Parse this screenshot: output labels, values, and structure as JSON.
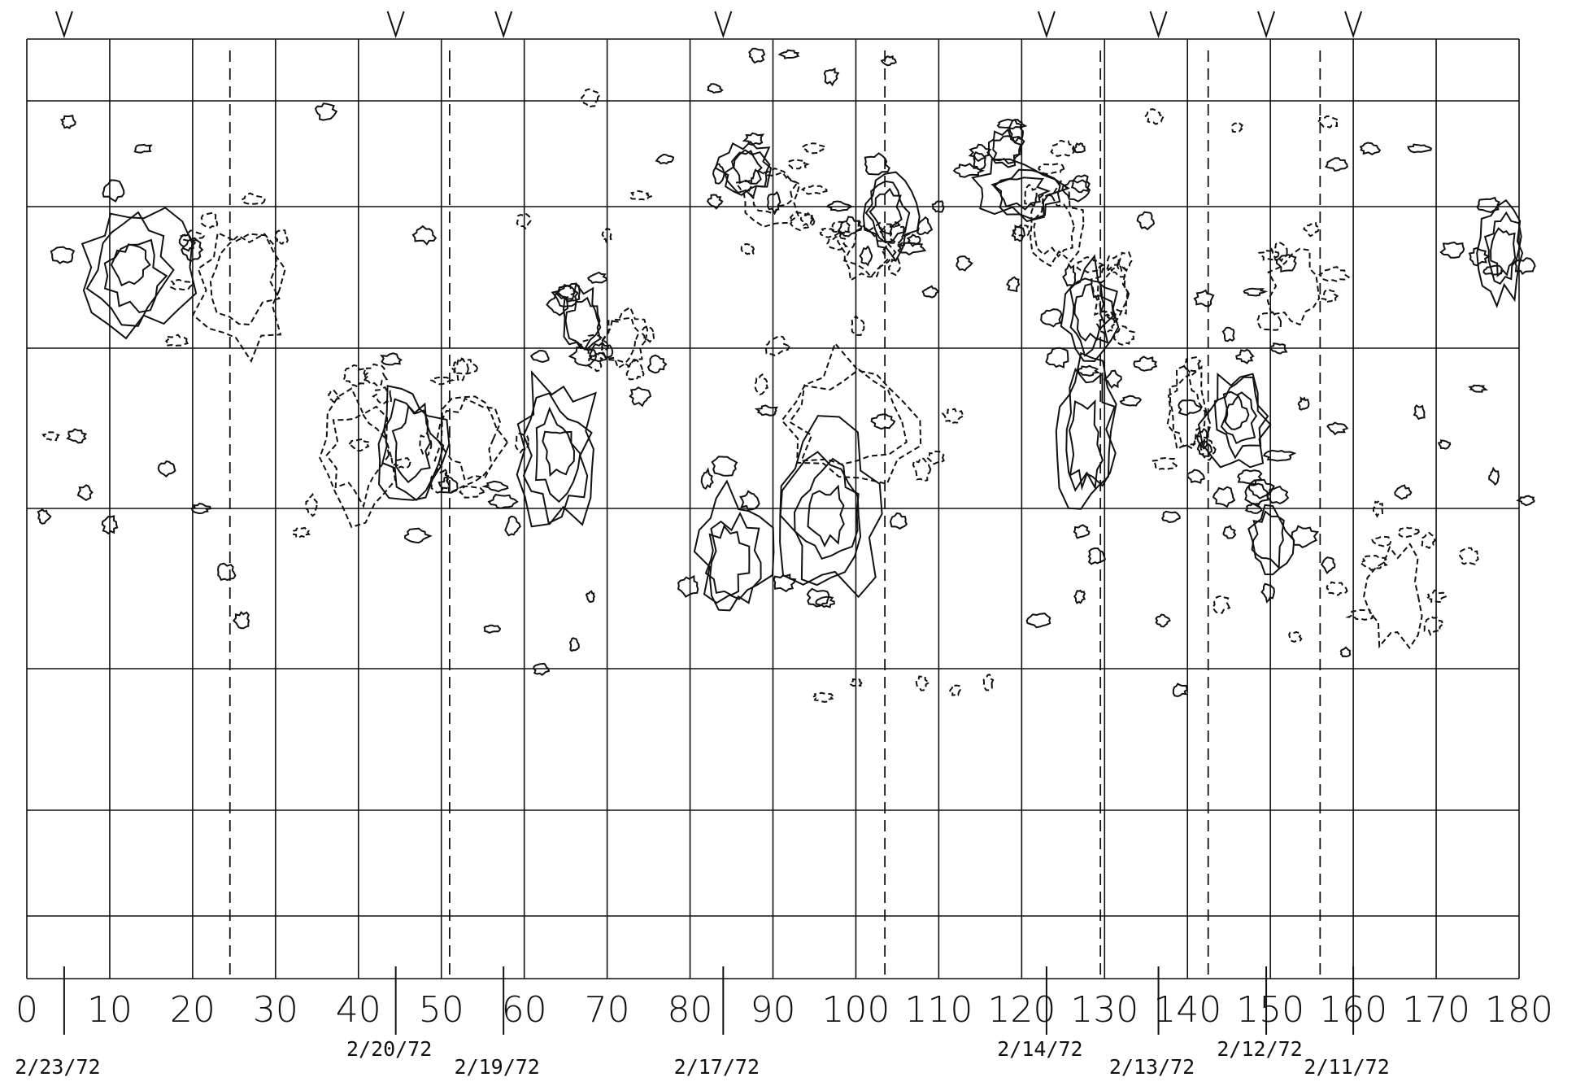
{
  "chart_data": {
    "type": "contour",
    "title": "",
    "xlabel": "",
    "ylabel": "",
    "xlim": [
      0,
      180
    ],
    "x_ticks": [
      0,
      10,
      20,
      30,
      40,
      50,
      60,
      70,
      80,
      90,
      100,
      110,
      120,
      130,
      140,
      150,
      160,
      170,
      180
    ],
    "x_tick_labels": [
      "0",
      "10",
      "20",
      "30",
      "40",
      "50",
      "60",
      "70",
      "80",
      "90",
      "100",
      "110",
      "120",
      "130",
      "140",
      "150",
      "160",
      "170",
      "180"
    ],
    "horizontal_grid_rows": 8,
    "dashed_vertical_lines_x": [
      24.5,
      51,
      103.5,
      129.5,
      142.5,
      156
    ],
    "v_markers_x": [
      4.5,
      44.5,
      57.5,
      84,
      123,
      136.5,
      149.5,
      160
    ],
    "date_markers": [
      {
        "x": 4.5,
        "label": "2/23/72",
        "level": "low"
      },
      {
        "x": 44.5,
        "label": "2/20/72",
        "level": "high"
      },
      {
        "x": 57.5,
        "label": "2/19/72",
        "level": "low"
      },
      {
        "x": 84,
        "label": "2/17/72",
        "level": "low"
      },
      {
        "x": 123,
        "label": "2/14/72",
        "level": "high"
      },
      {
        "x": 136.5,
        "label": "2/13/72",
        "level": "low"
      },
      {
        "x": 149.5,
        "label": "2/12/72",
        "level": "high"
      },
      {
        "x": 160,
        "label": "2/11/72",
        "level": "low"
      }
    ],
    "polarity_legend": {
      "positive": "solid contours",
      "negative": "dashed contours"
    },
    "regions": [
      {
        "x": 13,
        "row": 2.45,
        "sx": 6,
        "sy": 0.42,
        "polarity": "positive",
        "levels": 4
      },
      {
        "x": 26,
        "row": 2.55,
        "sx": 5,
        "sy": 0.4,
        "polarity": "negative",
        "levels": 2
      },
      {
        "x": 46,
        "row": 3.6,
        "sx": 4,
        "sy": 0.35,
        "polarity": "positive",
        "levels": 3
      },
      {
        "x": 40,
        "row": 3.7,
        "sx": 4,
        "sy": 0.35,
        "polarity": "negative",
        "levels": 2
      },
      {
        "x": 53,
        "row": 3.55,
        "sx": 4,
        "sy": 0.3,
        "polarity": "negative",
        "levels": 2
      },
      {
        "x": 64,
        "row": 3.65,
        "sx": 5,
        "sy": 0.45,
        "polarity": "positive",
        "levels": 4
      },
      {
        "x": 67,
        "row": 2.8,
        "sx": 2.5,
        "sy": 0.2,
        "polarity": "positive",
        "levels": 2
      },
      {
        "x": 72,
        "row": 2.95,
        "sx": 2.5,
        "sy": 0.2,
        "polarity": "negative",
        "levels": 2
      },
      {
        "x": 87,
        "row": 1.65,
        "sx": 3,
        "sy": 0.25,
        "polarity": "positive",
        "levels": 3
      },
      {
        "x": 90,
        "row": 1.85,
        "sx": 3.5,
        "sy": 0.25,
        "polarity": "negative",
        "levels": 2
      },
      {
        "x": 104,
        "row": 2.05,
        "sx": 3,
        "sy": 0.25,
        "polarity": "positive",
        "levels": 3
      },
      {
        "x": 101,
        "row": 2.3,
        "sx": 3,
        "sy": 0.2,
        "polarity": "negative",
        "levels": 2
      },
      {
        "x": 96,
        "row": 4.0,
        "sx": 6,
        "sy": 0.5,
        "polarity": "positive",
        "levels": 4
      },
      {
        "x": 99,
        "row": 3.5,
        "sx": 8,
        "sy": 0.4,
        "polarity": "negative",
        "levels": 2
      },
      {
        "x": 85,
        "row": 4.3,
        "sx": 4,
        "sy": 0.35,
        "polarity": "positive",
        "levels": 3
      },
      {
        "x": 120,
        "row": 1.85,
        "sx": 5,
        "sy": 0.25,
        "polarity": "positive",
        "levels": 3
      },
      {
        "x": 124,
        "row": 2.15,
        "sx": 3,
        "sy": 0.25,
        "polarity": "negative",
        "levels": 2
      },
      {
        "x": 118,
        "row": 1.45,
        "sx": 2,
        "sy": 0.15,
        "polarity": "positive",
        "levels": 2
      },
      {
        "x": 128,
        "row": 2.75,
        "sx": 3,
        "sy": 0.3,
        "polarity": "positive",
        "levels": 3
      },
      {
        "x": 131,
        "row": 2.6,
        "sx": 2,
        "sy": 0.2,
        "polarity": "negative",
        "levels": 2
      },
      {
        "x": 128,
        "row": 3.55,
        "sx": 3.5,
        "sy": 0.45,
        "polarity": "positive",
        "levels": 3
      },
      {
        "x": 146,
        "row": 3.45,
        "sx": 3.5,
        "sy": 0.3,
        "polarity": "positive",
        "levels": 4
      },
      {
        "x": 140,
        "row": 3.4,
        "sx": 2.5,
        "sy": 0.25,
        "polarity": "negative",
        "levels": 2
      },
      {
        "x": 178,
        "row": 2.3,
        "sx": 2.5,
        "sy": 0.3,
        "polarity": "positive",
        "levels": 3
      },
      {
        "x": 153,
        "row": 2.55,
        "sx": 3,
        "sy": 0.25,
        "polarity": "negative",
        "levels": 1
      },
      {
        "x": 165,
        "row": 4.55,
        "sx": 3,
        "sy": 0.3,
        "polarity": "negative",
        "levels": 1
      },
      {
        "x": 150,
        "row": 4.2,
        "sx": 2.5,
        "sy": 0.2,
        "polarity": "positive",
        "levels": 2
      }
    ],
    "specks": [
      [
        5,
        1.2,
        "p"
      ],
      [
        14,
        1.45,
        "p"
      ],
      [
        36,
        1.1,
        "p"
      ],
      [
        48,
        2.2,
        "p"
      ],
      [
        18,
        2.95,
        "n"
      ],
      [
        22,
        2.1,
        "n"
      ],
      [
        3,
        3.55,
        "n"
      ],
      [
        6,
        3.55,
        "p"
      ],
      [
        17,
        3.75,
        "p"
      ],
      [
        21,
        4.0,
        "p"
      ],
      [
        33,
        4.15,
        "n"
      ],
      [
        37,
        3.3,
        "n"
      ],
      [
        56,
        4.75,
        "p"
      ],
      [
        66,
        4.85,
        "p"
      ],
      [
        62,
        5.0,
        "p"
      ],
      [
        68,
        4.55,
        "p"
      ],
      [
        65,
        2.6,
        "n"
      ],
      [
        70,
        2.2,
        "n"
      ],
      [
        74,
        1.9,
        "n"
      ],
      [
        77,
        1.55,
        "p"
      ],
      [
        83,
        1.95,
        "p"
      ],
      [
        87,
        2.3,
        "n"
      ],
      [
        98,
        2.0,
        "p"
      ],
      [
        92,
        0.25,
        "p"
      ],
      [
        110,
        2.0,
        "p"
      ],
      [
        109,
        2.6,
        "p"
      ],
      [
        113,
        2.4,
        "p"
      ],
      [
        119,
        2.55,
        "p"
      ],
      [
        125,
        1.45,
        "n"
      ],
      [
        127,
        1.45,
        "p"
      ],
      [
        135,
        2.1,
        "p"
      ],
      [
        131,
        2.4,
        "n"
      ],
      [
        142,
        2.65,
        "p"
      ],
      [
        148,
        2.6,
        "p"
      ],
      [
        152,
        2.4,
        "p"
      ],
      [
        158,
        1.6,
        "p"
      ],
      [
        162,
        1.45,
        "p"
      ],
      [
        168,
        1.45,
        "p"
      ],
      [
        172,
        2.3,
        "p"
      ],
      [
        177,
        2.45,
        "p"
      ],
      [
        181,
        3.95,
        "p"
      ],
      [
        177,
        3.8,
        "p"
      ],
      [
        166,
        3.9,
        "p"
      ],
      [
        174,
        4.3,
        "n"
      ],
      [
        170,
        4.55,
        "n"
      ],
      [
        158,
        4.5,
        "n"
      ],
      [
        148,
        4.0,
        "p"
      ],
      [
        145,
        4.15,
        "p"
      ],
      [
        141,
        3.8,
        "p"
      ],
      [
        135,
        3.1,
        "p"
      ],
      [
        138,
        4.05,
        "p"
      ],
      [
        154,
        3.35,
        "p"
      ],
      [
        158,
        3.5,
        "p"
      ],
      [
        157,
        1.2,
        "n"
      ],
      [
        146,
        1.25,
        "n"
      ],
      [
        136,
        1.15,
        "n"
      ],
      [
        100,
        5.1,
        "n"
      ],
      [
        108,
        5.1,
        "n"
      ],
      [
        112,
        5.15,
        "n"
      ],
      [
        116,
        5.1,
        "n"
      ],
      [
        96,
        5.2,
        "n"
      ],
      [
        74,
        3.3,
        "p"
      ],
      [
        62,
        3.05,
        "p"
      ],
      [
        76,
        3.1,
        "p"
      ],
      [
        50,
        3.2,
        "n"
      ],
      [
        43,
        3.3,
        "n"
      ],
      [
        40,
        3.6,
        "n"
      ],
      [
        7,
        3.9,
        "p"
      ],
      [
        10,
        4.1,
        "p"
      ],
      [
        2,
        4.05,
        "p"
      ],
      [
        24,
        4.4,
        "p"
      ],
      [
        26,
        4.7,
        "p"
      ],
      [
        145,
        2.9,
        "p"
      ],
      [
        151,
        3.0,
        "p"
      ],
      [
        147,
        3.05,
        "p"
      ],
      [
        168,
        3.4,
        "p"
      ],
      [
        171,
        3.6,
        "p"
      ],
      [
        175,
        3.25,
        "p"
      ],
      [
        163,
        4.0,
        "n"
      ],
      [
        169,
        4.2,
        "n"
      ],
      [
        157,
        4.35,
        "p"
      ],
      [
        144,
        4.6,
        "n"
      ],
      [
        153,
        4.8,
        "n"
      ],
      [
        159,
        4.9,
        "p"
      ],
      [
        127,
        4.55,
        "p"
      ],
      [
        129,
        4.3,
        "p"
      ],
      [
        137,
        4.7,
        "p"
      ],
      [
        139,
        5.15,
        "p"
      ],
      [
        122,
        4.7,
        "p"
      ],
      [
        60,
        2.1,
        "n"
      ],
      [
        68,
        0.95,
        "n"
      ],
      [
        95,
        1.45,
        "n"
      ],
      [
        83,
        0.8,
        "p"
      ],
      [
        97,
        0.6,
        "p"
      ],
      [
        104,
        0.35,
        "p"
      ],
      [
        88,
        0.25,
        "p"
      ]
    ]
  }
}
